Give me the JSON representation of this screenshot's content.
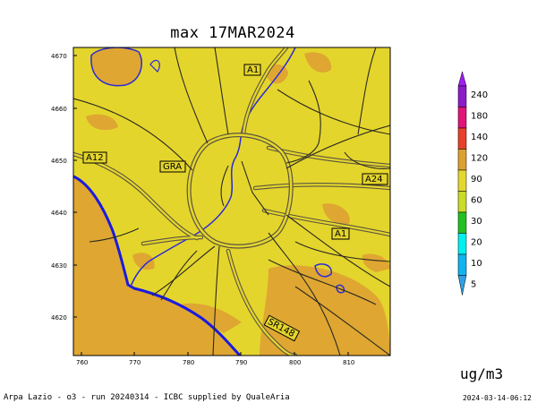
{
  "title": "max 17MAR2024",
  "x_ticks": [
    "760",
    "770",
    "780",
    "790",
    "800",
    "810"
  ],
  "y_ticks": [
    "4670",
    "4660",
    "4650",
    "4640",
    "4630",
    "4620"
  ],
  "road_labels": [
    "A1",
    "GRA",
    "A12",
    "A24",
    "A1",
    "SR148"
  ],
  "colorbar": {
    "levels": [
      "240",
      "180",
      "140",
      "120",
      "90",
      "60",
      "30",
      "20",
      "10",
      "5"
    ],
    "colors": [
      "#a020f0",
      "#8b1ec8",
      "#e0147a",
      "#e8402a",
      "#dca030",
      "#e4d830",
      "#c8dc28",
      "#22c022",
      "#00f0f0",
      "#10b4f0",
      "#30a0e6"
    ]
  },
  "unit": "ug/m3",
  "footer_left": "Arpa Lazio - o3 - run 20240314 - ICBC supplied by QualeAria",
  "footer_right": "2024-03-14-06:12",
  "map_colors": {
    "land": "#e4d52c",
    "high": "#dfa632",
    "sea": "#dfa632",
    "coast": "#1a1ae0"
  }
}
